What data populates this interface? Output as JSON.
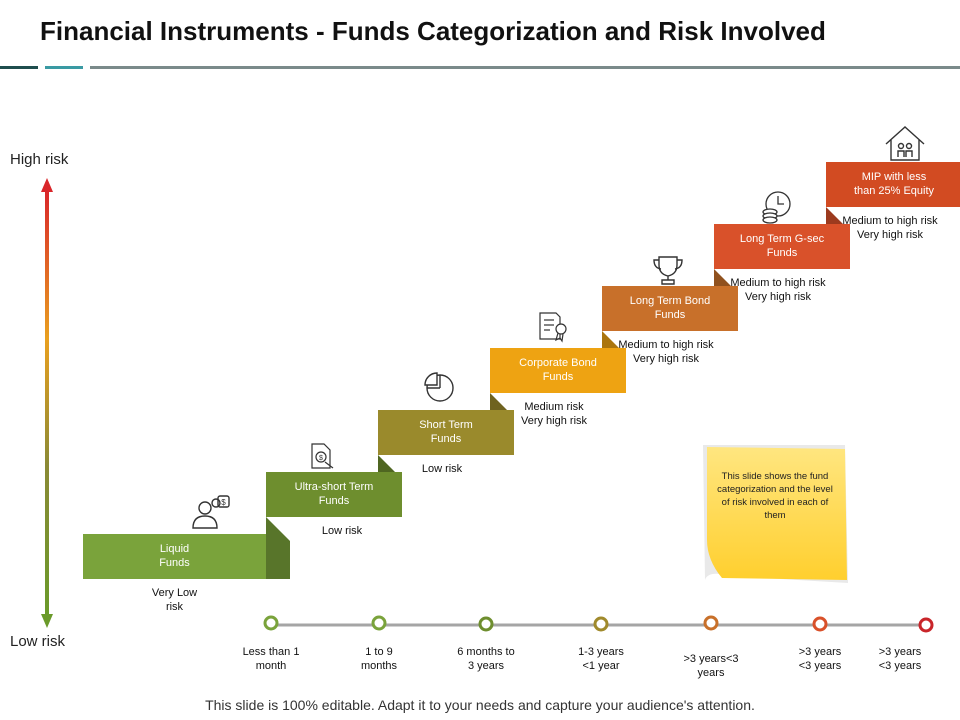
{
  "title": "Financial Instruments - Funds Categorization and Risk Involved",
  "axis": {
    "high_label": "High risk",
    "low_label": "Low risk"
  },
  "steps": [
    {
      "name": "Liquid Funds",
      "line1": "Liquid",
      "line2": "Funds",
      "risk1": "Very Low",
      "risk2": "risk",
      "color": "#7aa33b",
      "icon": "user-dollar-icon"
    },
    {
      "name": "Ultra-short Term Funds",
      "line1": "Ultra-short Term",
      "line2": "Funds",
      "risk1": "Low risk",
      "risk2": "",
      "color": "#6e8e2e",
      "icon": "document-dollar-icon"
    },
    {
      "name": "Short Term Funds",
      "line1": "Short Term",
      "line2": "Funds",
      "risk1": "Low risk",
      "risk2": "",
      "color": "#9a8a2c",
      "icon": "pie-chart-icon"
    },
    {
      "name": "Corporate Bond Funds",
      "line1": "Corporate Bond",
      "line2": "Funds",
      "risk1": "Medium risk",
      "risk2": "Very high risk",
      "color": "#eea312",
      "icon": "certificate-icon"
    },
    {
      "name": "Long Term Bond Funds",
      "line1": "Long Term Bond",
      "line2": "Funds",
      "risk1": "Medium to high risk",
      "risk2": "Very high risk",
      "color": "#c8702a",
      "icon": "trophy-icon"
    },
    {
      "name": "Long Term G-sec Funds",
      "line1": "Long Term G-sec",
      "line2": "Funds",
      "risk1": "Medium to high risk",
      "risk2": "Very high risk",
      "color": "#d9512a",
      "icon": "clock-coins-icon"
    },
    {
      "name": "MIP with less than 25% Equity",
      "line1": "MIP with less",
      "line2": "than 25% Equity",
      "risk1": "Medium to high risk",
      "risk2": "Very high risk",
      "color": "#d24b22",
      "icon": "house-family-icon"
    }
  ],
  "timeline": [
    {
      "line1": "Less than 1",
      "line2": "month",
      "color": "#7aa33b"
    },
    {
      "line1": "1 to 9",
      "line2": "months",
      "color": "#7aa33b"
    },
    {
      "line1": "6 months to",
      "line2": "3 years",
      "color": "#6e8e2e"
    },
    {
      "line1": "1-3 years",
      "line2": "<1 year",
      "color": "#a08a2c"
    },
    {
      "line1": ">3 years<3",
      "line2": "years",
      "color": "#c8702a"
    },
    {
      "line1": ">3 years",
      "line2": "<3 years",
      "color": "#d9512a"
    },
    {
      "line1": ">3 years",
      "line2": "<3 years",
      "color": "#c9252a"
    }
  ],
  "note": "This slide shows the fund categorization and the level of risk involved in each of them",
  "footer": "This slide is 100% editable. Adapt it to your needs and capture your audience's attention.",
  "colors": {
    "header_dark": "#1f4e4e",
    "header_teal": "#3a9aa3",
    "header_gray": "#7a8a8a",
    "note_yellow": "#ffd84d"
  }
}
